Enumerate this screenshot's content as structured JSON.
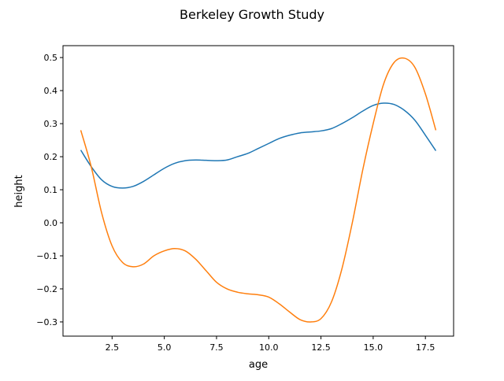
{
  "chart_data": {
    "type": "line",
    "title": "Berkeley Growth Study",
    "xlabel": "age",
    "ylabel": "height",
    "xlim": [
      0.15,
      18.85
    ],
    "ylim": [
      -0.343,
      0.536
    ],
    "xticks": [
      2.5,
      5.0,
      7.5,
      10.0,
      12.5,
      15.0,
      17.5
    ],
    "xtick_labels": [
      "2.5",
      "5.0",
      "7.5",
      "10.0",
      "12.5",
      "15.0",
      "17.5"
    ],
    "yticks": [
      -0.3,
      -0.2,
      -0.1,
      0.0,
      0.1,
      0.2,
      0.3,
      0.4,
      0.5
    ],
    "ytick_labels": [
      "−0.3",
      "−0.2",
      "−0.1",
      "0.0",
      "0.1",
      "0.2",
      "0.3",
      "0.4",
      "0.5"
    ],
    "grid": false,
    "x": [
      1,
      1.5,
      2,
      2.5,
      3,
      3.5,
      4,
      4.5,
      5,
      5.5,
      6,
      6.5,
      7,
      7.5,
      8,
      8.5,
      9,
      9.5,
      10,
      10.5,
      11,
      11.5,
      12,
      12.5,
      13,
      13.5,
      14,
      14.5,
      15,
      15.5,
      16,
      16.5,
      17,
      17.5,
      18
    ],
    "series": [
      {
        "color": "#1f77b4",
        "values": [
          0.22,
          0.17,
          0.13,
          0.11,
          0.105,
          0.11,
          0.125,
          0.145,
          0.165,
          0.18,
          0.188,
          0.19,
          0.189,
          0.188,
          0.19,
          0.2,
          0.21,
          0.225,
          0.24,
          0.255,
          0.265,
          0.272,
          0.275,
          0.278,
          0.285,
          0.3,
          0.318,
          0.338,
          0.355,
          0.362,
          0.358,
          0.34,
          0.31,
          0.265,
          0.218
        ]
      },
      {
        "color": "#ff7f0e",
        "values": [
          0.28,
          0.17,
          0.03,
          -0.07,
          -0.12,
          -0.133,
          -0.125,
          -0.1,
          -0.085,
          -0.078,
          -0.085,
          -0.11,
          -0.145,
          -0.18,
          -0.2,
          -0.21,
          -0.215,
          -0.218,
          -0.225,
          -0.245,
          -0.27,
          -0.293,
          -0.3,
          -0.29,
          -0.24,
          -0.14,
          0.0,
          0.16,
          0.3,
          0.42,
          0.485,
          0.498,
          0.47,
          0.39,
          0.28
        ]
      }
    ]
  }
}
